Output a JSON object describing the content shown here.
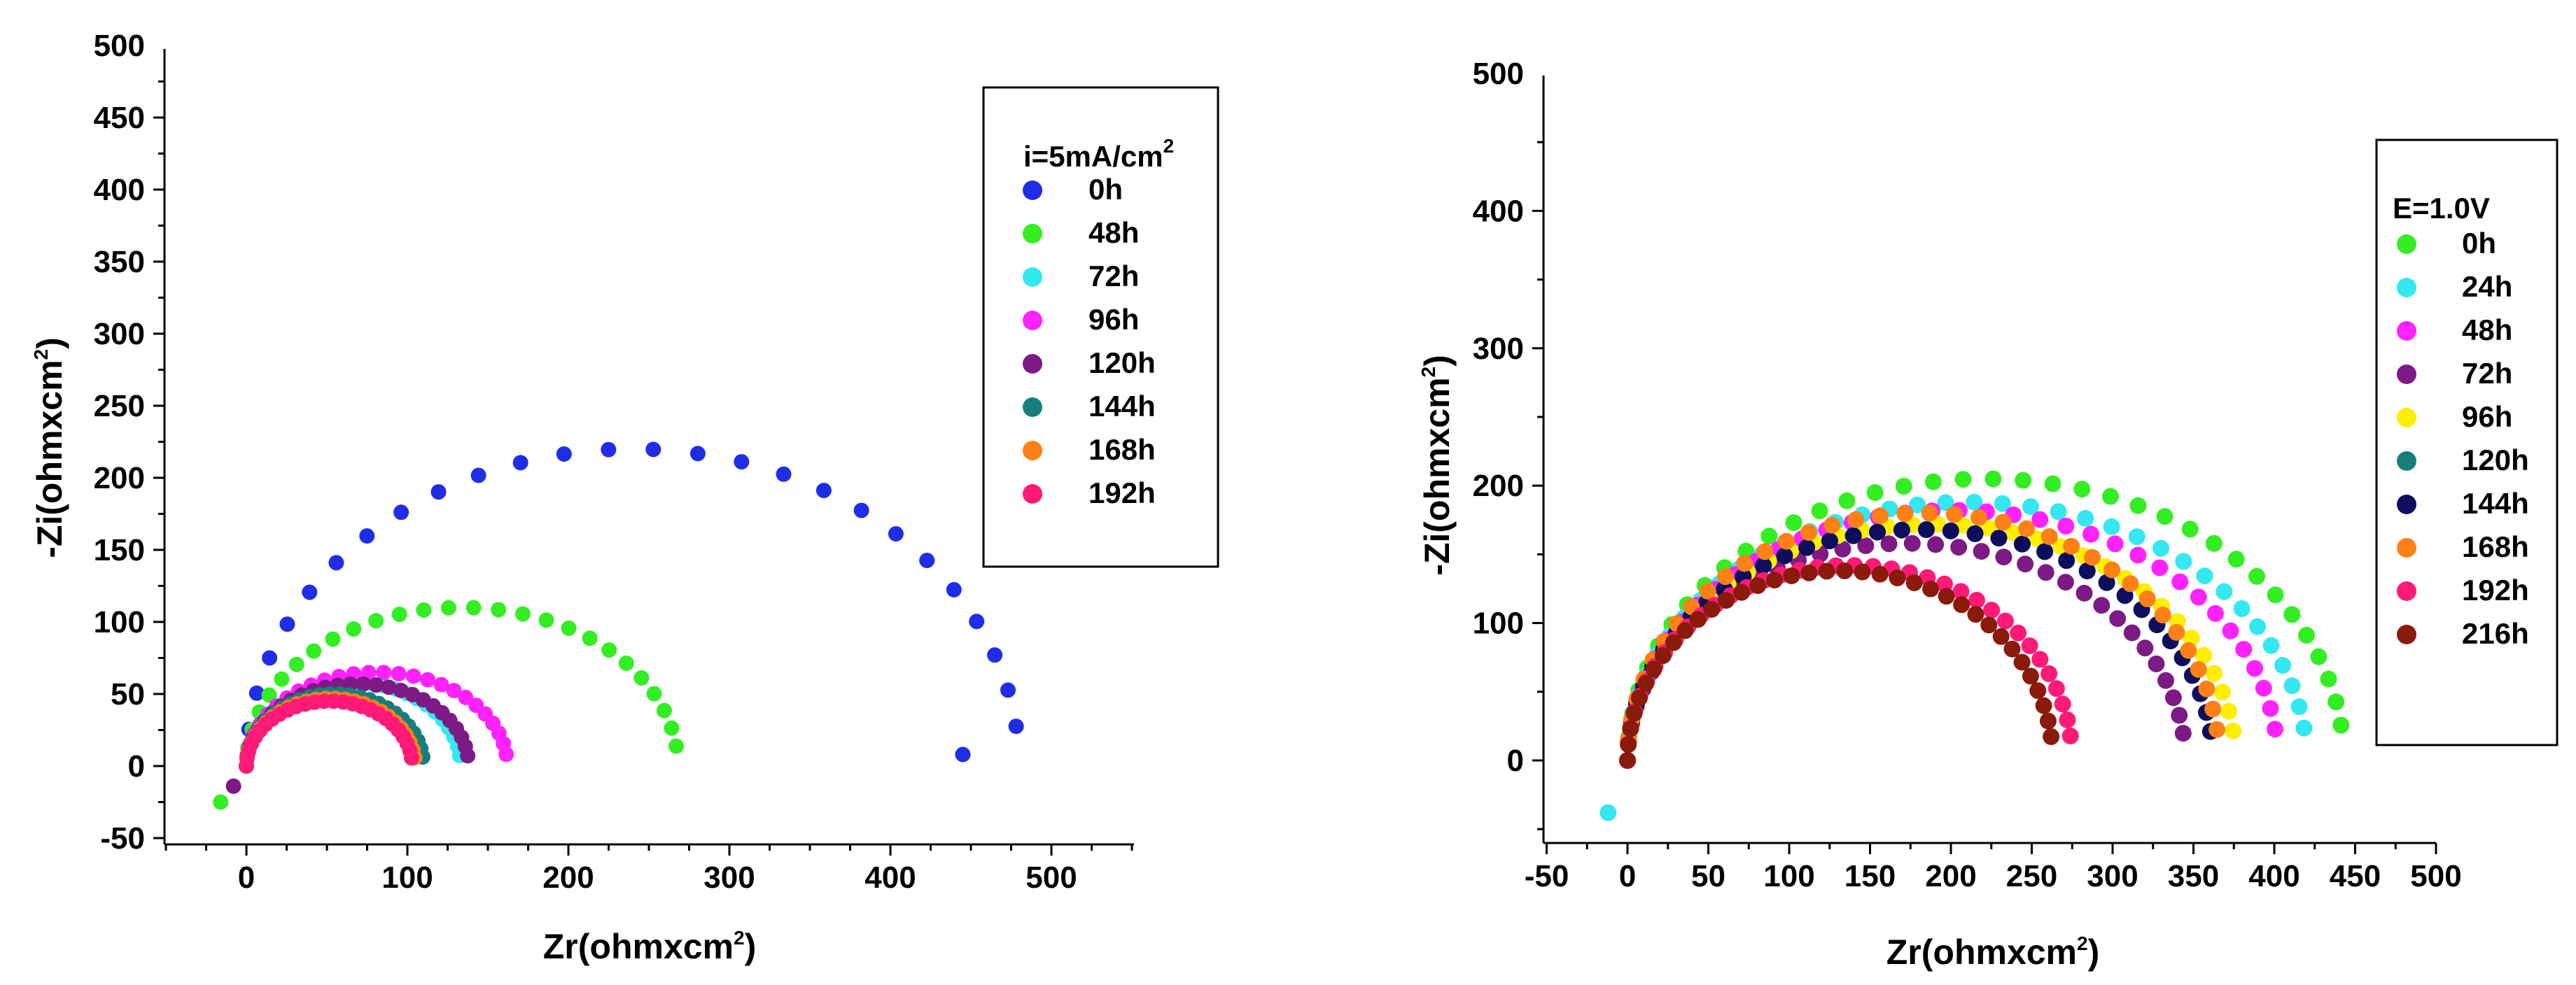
{
  "chart_data": [
    {
      "type": "scatter",
      "xlabel": "Zr(ohmxcm",
      "xlabel_sup": "2",
      "ylabel": "-Zi(ohmxcm",
      "ylabel_sup": "2",
      "xlim": [
        -50,
        550
      ],
      "ylim": [
        -50,
        500
      ],
      "xticks": [
        "0",
        "100",
        "200",
        "300",
        "400",
        "500"
      ],
      "yticks": [
        "-50",
        "0",
        "50",
        "100",
        "150",
        "200",
        "250",
        "300",
        "350",
        "400",
        "450",
        "500"
      ],
      "legend_title": "i=5mA/cm",
      "legend_title_sup": "2",
      "legend_position": "top-right",
      "series": [
        {
          "name": "0h",
          "color": "#1f2ee6",
          "arc": {
            "start": 0,
            "end": 480,
            "peak": 220
          },
          "extra": [
            [
              445,
              8
            ]
          ]
        },
        {
          "name": "48h",
          "color": "#33ee22",
          "arc": {
            "start": 0,
            "end": 268,
            "peak": 110
          },
          "extra": [
            [
              -16,
              -25
            ]
          ]
        },
        {
          "name": "72h",
          "color": "#33e8f0",
          "arc": {
            "start": 0,
            "end": 133,
            "peak": 58
          },
          "extra": []
        },
        {
          "name": "96h",
          "color": "#ff22ff",
          "arc": {
            "start": 0,
            "end": 162,
            "peak": 65
          },
          "extra": []
        },
        {
          "name": "120h",
          "color": "#7d1a86",
          "arc": {
            "start": 0,
            "end": 138,
            "peak": 57
          },
          "extra": [
            [
              -8,
              -14
            ]
          ]
        },
        {
          "name": "144h",
          "color": "#167f7d",
          "arc": {
            "start": 0,
            "end": 110,
            "peak": 50
          },
          "extra": []
        },
        {
          "name": "168h",
          "color": "#ff8016",
          "arc": {
            "start": 0,
            "end": 105,
            "peak": 47
          },
          "extra": []
        },
        {
          "name": "192h",
          "color": "#ff1a78",
          "arc": {
            "start": 0,
            "end": 103,
            "peak": 45
          },
          "extra": []
        }
      ]
    },
    {
      "type": "scatter",
      "xlabel": "Zr(ohmxcm",
      "xlabel_sup": "2",
      "ylabel": "-Zi(ohmxcm",
      "ylabel_sup": "2",
      "xlim": [
        -50,
        500
      ],
      "ylim": [
        -60,
        500
      ],
      "xticks": [
        "-50",
        "0",
        "50",
        "100",
        "150",
        "200",
        "250",
        "300",
        "350",
        "400",
        "450",
        "500"
      ],
      "yticks": [
        "0",
        "100",
        "200",
        "300",
        "400",
        "500"
      ],
      "legend_title": "E=1.0V",
      "legend_position": "right",
      "series": [
        {
          "name": "0h",
          "color": "#33ee22",
          "arc": {
            "start": 0,
            "end": 443,
            "peak": 205
          },
          "extra": []
        },
        {
          "name": "24h",
          "color": "#33e8f0",
          "arc": {
            "start": 0,
            "end": 420,
            "peak": 188
          },
          "extra": [
            [
              -12,
              -38
            ]
          ]
        },
        {
          "name": "48h",
          "color": "#ff22ff",
          "arc": {
            "start": 0,
            "end": 402,
            "peak": 182
          },
          "extra": []
        },
        {
          "name": "72h",
          "color": "#7d1a86",
          "arc": {
            "start": 0,
            "end": 345,
            "peak": 158
          },
          "extra": []
        },
        {
          "name": "96h",
          "color": "#ffee00",
          "arc": {
            "start": 0,
            "end": 376,
            "peak": 172
          },
          "extra": []
        },
        {
          "name": "120h",
          "color": "#167f7d",
          "arc": {
            "start": 0,
            "end": 362,
            "peak": 168
          },
          "extra": []
        },
        {
          "name": "144h",
          "color": "#0d0d5e",
          "arc": {
            "start": 0,
            "end": 362,
            "peak": 168
          },
          "extra": []
        },
        {
          "name": "168h",
          "color": "#ff8016",
          "arc": {
            "start": 0,
            "end": 366,
            "peak": 180
          },
          "extra": []
        },
        {
          "name": "192h",
          "color": "#ff1a78",
          "arc": {
            "start": 0,
            "end": 275,
            "peak": 142
          },
          "extra": []
        },
        {
          "name": "216h",
          "color": "#8a1a0a",
          "arc": {
            "start": 0,
            "end": 263,
            "peak": 138
          },
          "extra": []
        }
      ]
    }
  ]
}
